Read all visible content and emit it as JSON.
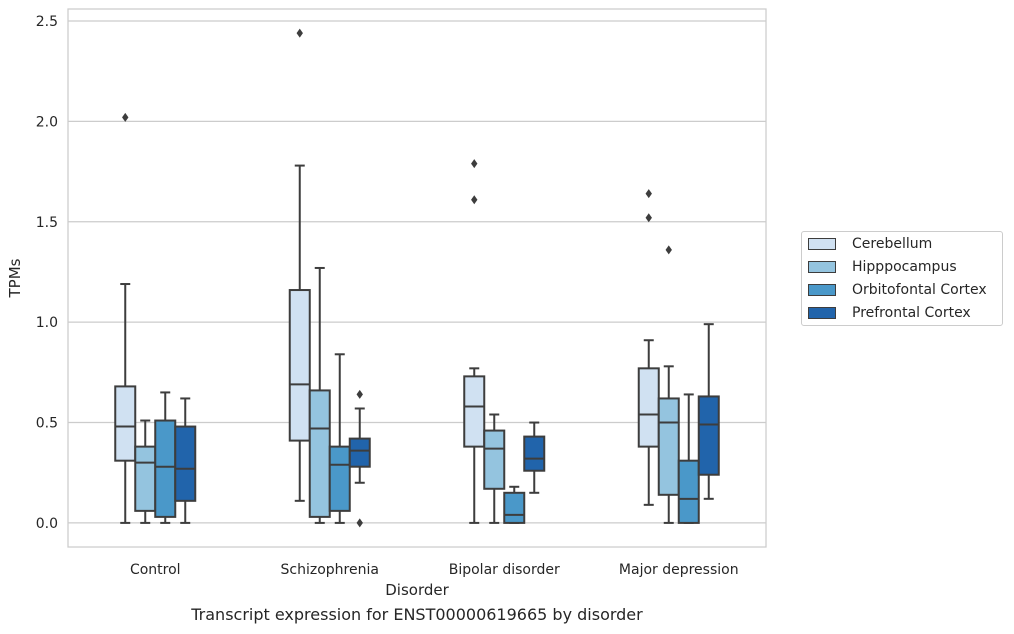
{
  "chart_data": {
    "type": "box",
    "title": "",
    "caption": "Transcript expression for ENST00000619665 by disorder",
    "xlabel": "Disorder",
    "ylabel": "TPMs",
    "ylim": [
      -0.12,
      2.56
    ],
    "yticks": [
      "0.0",
      "0.5",
      "1.0",
      "1.5",
      "2.0",
      "2.5"
    ],
    "ytick_values": [
      0.0,
      0.5,
      1.0,
      1.5,
      2.0,
      2.5
    ],
    "grid": true,
    "legend_position": "right",
    "categories": [
      "Control",
      "Schizophrenia",
      "Bipolar disorder",
      "Major depression"
    ],
    "series": [
      {
        "name": "Cerebellum",
        "color": "#d0e1f2",
        "boxes": [
          {
            "whislo": 0.0,
            "q1": 0.31,
            "med": 0.48,
            "q3": 0.68,
            "whishi": 1.19,
            "fliers": [
              2.02
            ]
          },
          {
            "whislo": 0.11,
            "q1": 0.41,
            "med": 0.69,
            "q3": 1.16,
            "whishi": 1.78,
            "fliers": [
              2.44
            ]
          },
          {
            "whislo": 0.0,
            "q1": 0.38,
            "med": 0.58,
            "q3": 0.73,
            "whishi": 0.77,
            "fliers": [
              1.79,
              1.61
            ]
          },
          {
            "whislo": 0.09,
            "q1": 0.38,
            "med": 0.54,
            "q3": 0.77,
            "whishi": 0.91,
            "fliers": [
              1.64,
              1.52
            ]
          }
        ]
      },
      {
        "name": "Hipppocampus",
        "color": "#94c4df",
        "boxes": [
          {
            "whislo": 0.0,
            "q1": 0.06,
            "med": 0.3,
            "q3": 0.38,
            "whishi": 0.51,
            "fliers": []
          },
          {
            "whislo": 0.0,
            "q1": 0.03,
            "med": 0.47,
            "q3": 0.66,
            "whishi": 1.27,
            "fliers": []
          },
          {
            "whislo": 0.0,
            "q1": 0.17,
            "med": 0.37,
            "q3": 0.46,
            "whishi": 0.54,
            "fliers": []
          },
          {
            "whislo": 0.0,
            "q1": 0.14,
            "med": 0.5,
            "q3": 0.62,
            "whishi": 0.78,
            "fliers": [
              1.36
            ]
          }
        ]
      },
      {
        "name": "Orbitofontal Cortex",
        "color": "#4a98c9",
        "boxes": [
          {
            "whislo": 0.0,
            "q1": 0.03,
            "med": 0.28,
            "q3": 0.51,
            "whishi": 0.65,
            "fliers": []
          },
          {
            "whislo": 0.0,
            "q1": 0.06,
            "med": 0.29,
            "q3": 0.38,
            "whishi": 0.84,
            "fliers": []
          },
          {
            "whislo": 0.0,
            "q1": 0.0,
            "med": 0.04,
            "q3": 0.15,
            "whishi": 0.18,
            "fliers": []
          },
          {
            "whislo": 0.0,
            "q1": 0.0,
            "med": 0.12,
            "q3": 0.31,
            "whishi": 0.64,
            "fliers": []
          }
        ]
      },
      {
        "name": "Prefrontal Cortex",
        "color": "#2164ab",
        "boxes": [
          {
            "whislo": 0.0,
            "q1": 0.11,
            "med": 0.27,
            "q3": 0.48,
            "whishi": 0.62,
            "fliers": []
          },
          {
            "whislo": 0.2,
            "q1": 0.28,
            "med": 0.36,
            "q3": 0.42,
            "whishi": 0.57,
            "fliers": [
              0.64,
              0.0
            ]
          },
          {
            "whislo": 0.15,
            "q1": 0.26,
            "med": 0.32,
            "q3": 0.43,
            "whishi": 0.5,
            "fliers": []
          },
          {
            "whislo": 0.12,
            "q1": 0.24,
            "med": 0.49,
            "q3": 0.63,
            "whishi": 0.99,
            "fliers": []
          }
        ]
      }
    ]
  }
}
